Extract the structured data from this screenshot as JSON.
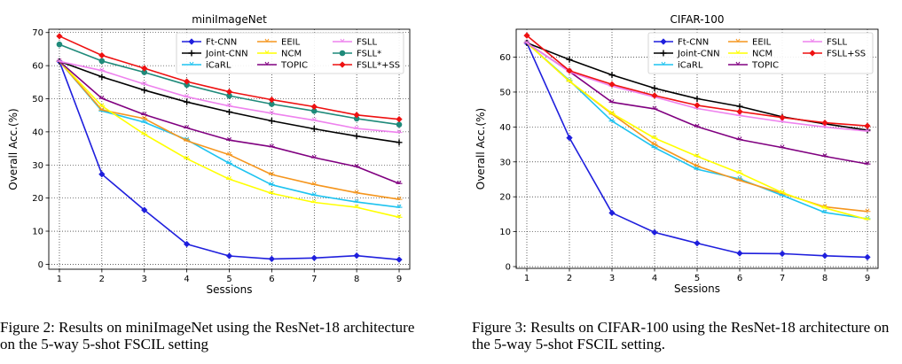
{
  "captions": {
    "left": "Figure 2: Results on miniImageNet using the ResNet-18 architecture on the 5-way 5-shot FSCIL setting",
    "right": "Figure 3: Results on CIFAR-100 using the ResNet-18 architecture on the 5-way 5-shot FSCIL setting."
  },
  "chart_data": [
    {
      "type": "line",
      "title": "miniImageNet",
      "xlabel": "Sessions",
      "ylabel": "Overall Acc.(%)",
      "x": [
        1,
        2,
        3,
        4,
        5,
        6,
        7,
        8,
        9
      ],
      "xlim": [
        0.75,
        9.25
      ],
      "ylim": [
        -1.5,
        71
      ],
      "yticks": [
        0,
        10,
        20,
        30,
        40,
        50,
        60,
        70
      ],
      "grid": true,
      "legend_position": "top-right",
      "legend_columns": 3,
      "series": [
        {
          "name": "Ft-CNN",
          "color": "#1f1fdd",
          "marker": "diamond",
          "values": [
            61.3,
            27.2,
            16.4,
            6.1,
            2.5,
            1.6,
            1.9,
            2.6,
            1.4
          ]
        },
        {
          "name": "Joint-CNN",
          "color": "#000000",
          "marker": "plus",
          "values": [
            61.3,
            56.6,
            52.6,
            49.0,
            46.0,
            43.3,
            40.9,
            38.7,
            36.8
          ]
        },
        {
          "name": "iCaRL",
          "color": "#1ec3f0",
          "marker": "tri",
          "values": [
            61.3,
            46.3,
            42.9,
            37.6,
            30.5,
            24.0,
            20.9,
            18.8,
            17.2
          ]
        },
        {
          "name": "EEIL",
          "color": "#f5961e",
          "marker": "tri",
          "values": [
            61.3,
            46.6,
            44.0,
            37.3,
            33.1,
            27.1,
            24.1,
            21.6,
            19.6
          ]
        },
        {
          "name": "NCM",
          "color": "#ffff00",
          "marker": "tri",
          "values": [
            61.3,
            47.8,
            39.3,
            31.9,
            25.7,
            21.4,
            18.7,
            17.2,
            14.2
          ]
        },
        {
          "name": "TOPIC",
          "color": "#800080",
          "marker": "tri",
          "values": [
            61.3,
            50.1,
            45.2,
            41.2,
            37.5,
            35.5,
            32.2,
            29.5,
            24.4
          ]
        },
        {
          "name": "FSLL",
          "color": "#ee82ee",
          "marker": "tri",
          "values": [
            61.3,
            58.5,
            54.4,
            50.6,
            47.8,
            45.6,
            43.5,
            41.0,
            39.8
          ]
        },
        {
          "name": "FSLL*",
          "color": "#1f8a7a",
          "marker": "circle",
          "values": [
            66.4,
            61.4,
            58.0,
            54.2,
            50.9,
            48.4,
            46.3,
            44.0,
            42.2
          ]
        },
        {
          "name": "FSLL*+SS",
          "color": "#ee1111",
          "marker": "diamond",
          "values": [
            68.9,
            63.1,
            59.2,
            55.2,
            52.1,
            49.7,
            47.6,
            45.1,
            43.8
          ]
        }
      ]
    },
    {
      "type": "line",
      "title": "CIFAR-100",
      "xlabel": "Sessions",
      "ylabel": "Overall Acc.(%)",
      "x": [
        1,
        2,
        3,
        4,
        5,
        6,
        7,
        8,
        9
      ],
      "xlim": [
        0.75,
        9.25
      ],
      "ylim": [
        -0.5,
        68
      ],
      "yticks": [
        0,
        10,
        20,
        30,
        40,
        50,
        60
      ],
      "grid": true,
      "legend_position": "top-right",
      "legend_columns": 3,
      "series": [
        {
          "name": "Ft-CNN",
          "color": "#1f1fdd",
          "marker": "diamond",
          "values": [
            64.1,
            36.9,
            15.4,
            9.8,
            6.7,
            3.8,
            3.7,
            3.1,
            2.7
          ]
        },
        {
          "name": "Joint-CNN",
          "color": "#000000",
          "marker": "plus",
          "values": [
            64.1,
            59.3,
            54.9,
            51.1,
            48.1,
            45.9,
            42.9,
            40.9,
            39.1
          ]
        },
        {
          "name": "iCaRL",
          "color": "#1ec3f0",
          "marker": "tri",
          "values": [
            64.1,
            53.3,
            41.7,
            34.1,
            27.9,
            25.1,
            20.4,
            15.5,
            13.7
          ]
        },
        {
          "name": "EEIL",
          "color": "#f5961e",
          "marker": "tri",
          "values": [
            64.1,
            53.1,
            43.7,
            35.0,
            28.8,
            24.7,
            21.0,
            17.1,
            15.8
          ]
        },
        {
          "name": "NCM",
          "color": "#ffff00",
          "marker": "tri",
          "values": [
            64.1,
            53.1,
            43.9,
            36.8,
            31.6,
            26.8,
            21.2,
            16.8,
            13.5
          ]
        },
        {
          "name": "TOPIC",
          "color": "#800080",
          "marker": "tri",
          "values": [
            64.1,
            55.9,
            47.1,
            45.2,
            40.1,
            36.4,
            34.1,
            31.6,
            29.4
          ]
        },
        {
          "name": "FSLL",
          "color": "#ee82ee",
          "marker": "tri",
          "values": [
            64.1,
            55.8,
            51.7,
            48.6,
            45.3,
            43.3,
            41.5,
            40.0,
            38.8
          ]
        },
        {
          "name": "FSLL+SS",
          "color": "#ee1111",
          "marker": "diamond",
          "values": [
            66.2,
            56.1,
            52.2,
            49.0,
            46.2,
            44.4,
            42.7,
            41.2,
            40.3
          ]
        }
      ]
    }
  ]
}
